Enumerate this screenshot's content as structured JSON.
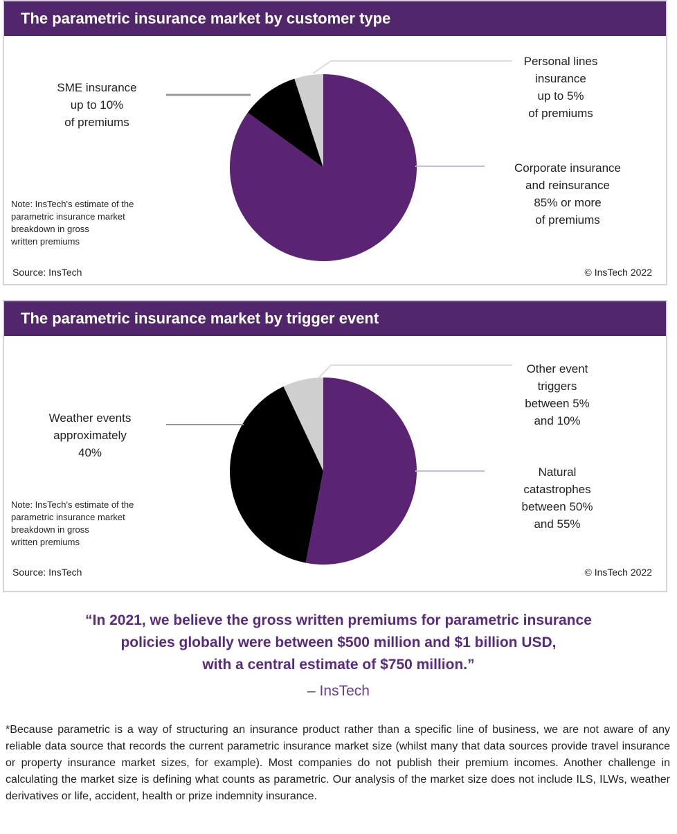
{
  "chart_data": [
    {
      "type": "pie",
      "title": "The parametric insurance market by customer type",
      "slices": [
        {
          "name": "Corporate insurance and reinsurance",
          "value": 85,
          "color": "#5a2373"
        },
        {
          "name": "SME insurance",
          "value": 10,
          "color": "#000000"
        },
        {
          "name": "Personal lines insurance",
          "value": 5,
          "color": "#cfcfcf"
        }
      ],
      "labels": {
        "sme": [
          "SME insurance",
          "up to 10%",
          "of premiums"
        ],
        "personal": [
          "Personal lines",
          "insurance",
          "up to 5%",
          "of premiums"
        ],
        "corporate": [
          "Corporate insurance",
          "and reinsurance",
          "85% or more",
          "of premiums"
        ]
      },
      "note": [
        "Note: InsTech's estimate of the",
        "parametric insurance market",
        "breakdown in gross",
        "written premiums"
      ],
      "source": "Source: InsTech",
      "copyright": "© InsTech 2022"
    },
    {
      "type": "pie",
      "title": "The parametric insurance market by trigger event",
      "slices": [
        {
          "name": "Natural catastrophes",
          "value": 53,
          "color": "#5a2373"
        },
        {
          "name": "Weather events",
          "value": 40,
          "color": "#000000"
        },
        {
          "name": "Other event triggers",
          "value": 7,
          "color": "#cfcfcf"
        }
      ],
      "labels": {
        "weather": [
          "Weather events",
          "approximately",
          "40%"
        ],
        "other": [
          "Other event",
          "triggers",
          "between 5%",
          "and 10%"
        ],
        "natural": [
          "Natural",
          "catastrophes",
          "between 50%",
          "and 55%"
        ]
      },
      "note": [
        "Note: InsTech's estimate of the",
        "parametric insurance market",
        "breakdown in gross",
        "written premiums"
      ],
      "source": "Source: InsTech",
      "copyright": "© InsTech 2022"
    }
  ],
  "quote": {
    "lines": [
      "“In 2021, we believe the gross written premiums for parametric insurance",
      "policies globally were between $500 million and $1 billion USD,",
      "with a central estimate of $750 million.”"
    ],
    "attribution": "– InsTech"
  },
  "footnote": "*Because parametric is a way of structuring an insurance product rather than a specific line of business, we are not aware of any reliable data source that records the current parametric insurance market size (whilst many that data sources provide travel insurance or property insurance market sizes, for example). Most companies do not publish their premium incomes. Another challenge in calculating the market size is defining what counts as parametric. Our analysis of the market size does not include ILS, ILWs, weather derivatives or life, accident, health or prize indemnity insurance."
}
